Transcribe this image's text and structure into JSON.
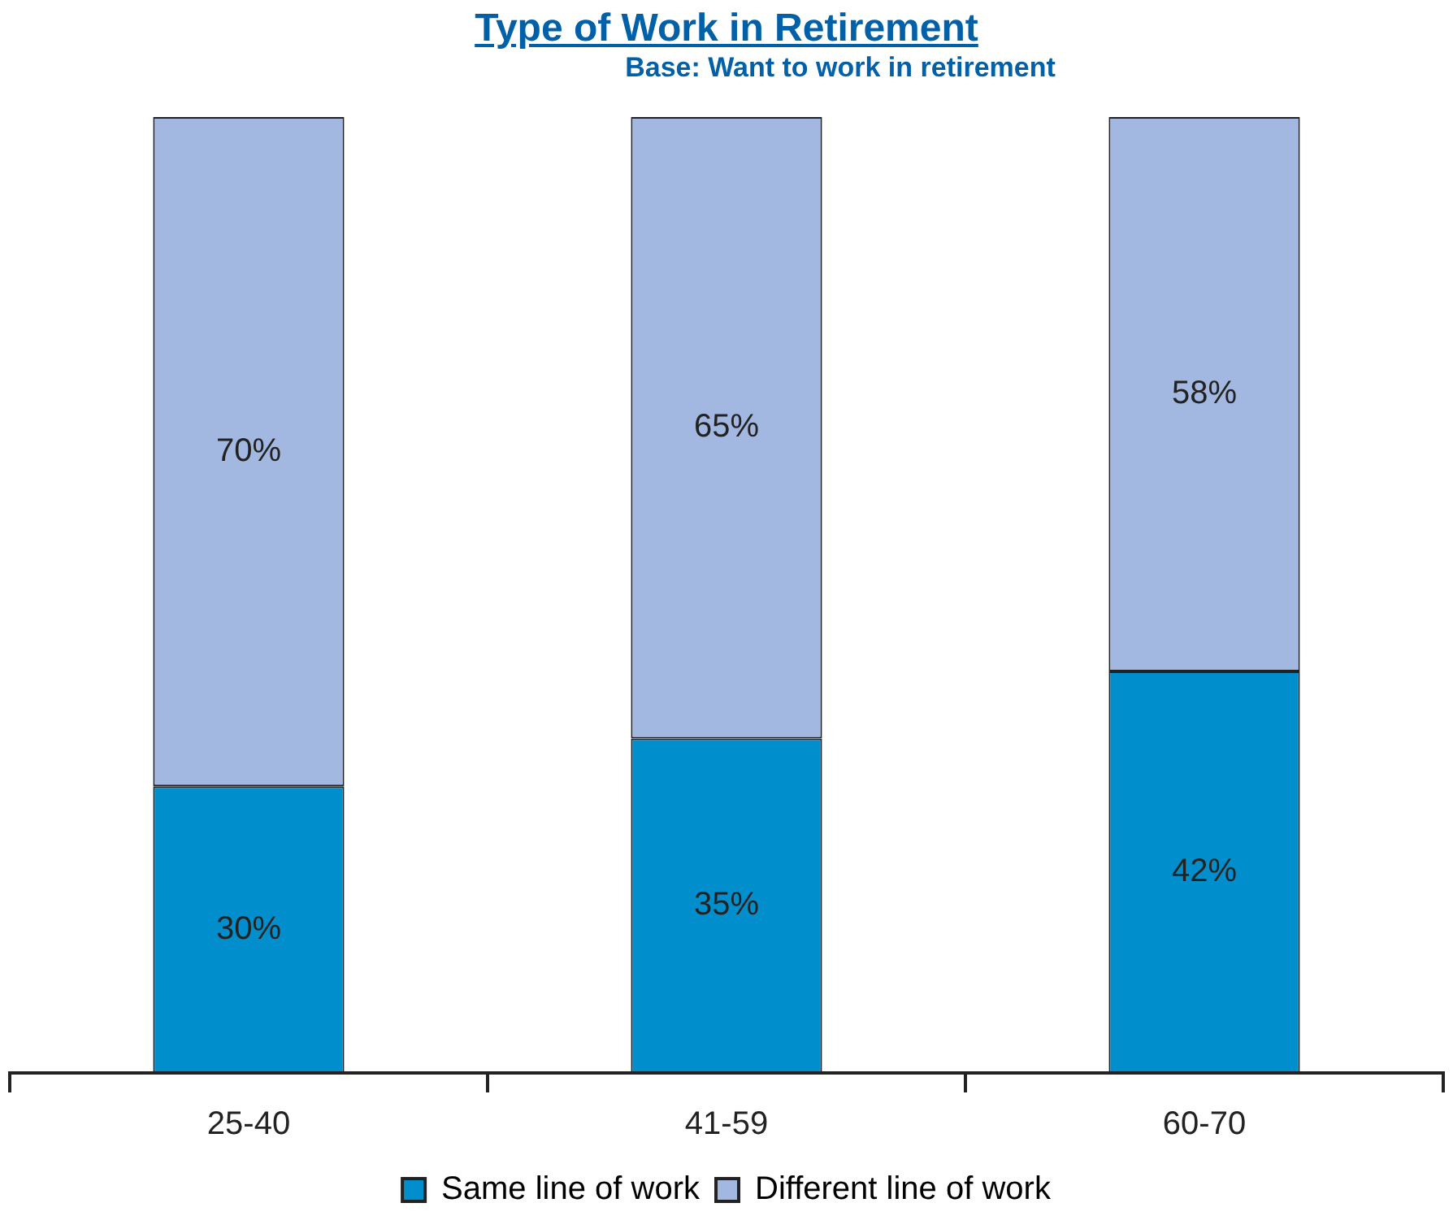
{
  "chart_data": {
    "type": "bar",
    "title": "Type of Work in Retirement",
    "subtitle": "Base: Want to work in retirement",
    "categories": [
      "25-40",
      "41-59",
      "60-70"
    ],
    "stacked": true,
    "legend": "bottom",
    "series": [
      {
        "name": "Same line of work",
        "color": "#008fcc",
        "values": [
          30,
          35,
          42
        ],
        "value_labels": [
          "30%",
          "35%",
          "42%"
        ]
      },
      {
        "name": "Different line of work",
        "color": "#a3b8e0",
        "values": [
          70,
          65,
          58
        ],
        "value_labels": [
          "70%",
          "65%",
          "58%"
        ]
      }
    ]
  }
}
